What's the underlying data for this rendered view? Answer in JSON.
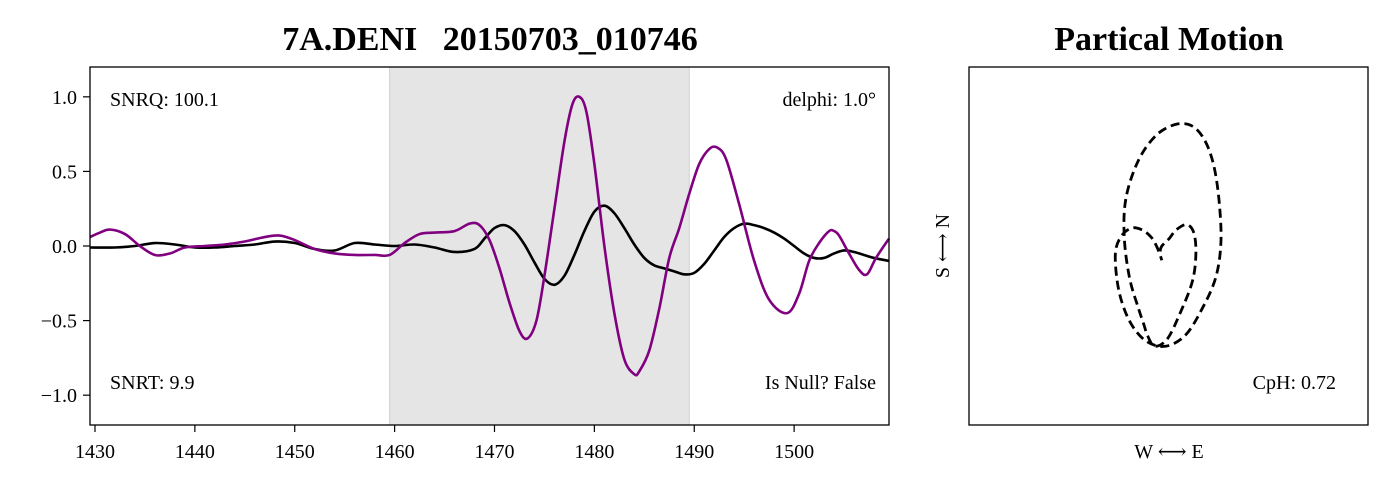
{
  "chart_data": [
    {
      "type": "line",
      "title": "7A.DENI   20150703_010746",
      "xlabel": "",
      "ylabel": "",
      "xlim": [
        1429.5,
        1509.5
      ],
      "ylim": [
        -1.2,
        1.2
      ],
      "xticks": [
        1430,
        1440,
        1450,
        1460,
        1470,
        1480,
        1490,
        1500
      ],
      "yticks": [
        1.0,
        0.5,
        0.0,
        -0.5,
        -1.0
      ],
      "ytick_labels": [
        "1.0",
        "0.5",
        "0.0",
        "−0.5",
        "−1.0"
      ],
      "grid": false,
      "window": {
        "x_start": 1459.5,
        "x_end": 1489.5,
        "color": "#e5e5e5"
      },
      "annotations": {
        "top_left": "SNRQ: 100.1",
        "top_right": "delphi: 1.0°",
        "bottom_left": "SNRT: 9.9",
        "bottom_right": "Is Null? False"
      },
      "series": [
        {
          "color": "#000000",
          "x": [
            1429.5,
            1432,
            1434,
            1436,
            1438,
            1440,
            1442,
            1444,
            1446,
            1448,
            1450,
            1452,
            1454,
            1456,
            1458,
            1460,
            1462,
            1464,
            1466,
            1468,
            1469,
            1470,
            1471,
            1472,
            1473,
            1474,
            1475,
            1476,
            1477,
            1478,
            1479,
            1480,
            1481,
            1482,
            1483,
            1484,
            1485,
            1486,
            1487,
            1488,
            1489,
            1490,
            1491,
            1492,
            1493,
            1494,
            1495,
            1496,
            1497,
            1498,
            1499,
            1500,
            1501,
            1502,
            1503,
            1504,
            1505,
            1506,
            1507,
            1508,
            1509.5
          ],
          "values": [
            -0.01,
            -0.01,
            0.0,
            0.02,
            0.01,
            -0.01,
            -0.01,
            0.0,
            0.01,
            0.03,
            0.02,
            -0.02,
            -0.03,
            0.02,
            0.01,
            0.0,
            0.01,
            -0.01,
            -0.04,
            -0.02,
            0.05,
            0.12,
            0.14,
            0.1,
            0.01,
            -0.11,
            -0.22,
            -0.26,
            -0.2,
            -0.06,
            0.1,
            0.23,
            0.27,
            0.22,
            0.12,
            0.01,
            -0.08,
            -0.13,
            -0.15,
            -0.17,
            -0.19,
            -0.18,
            -0.12,
            -0.03,
            0.06,
            0.12,
            0.15,
            0.14,
            0.12,
            0.09,
            0.05,
            0.0,
            -0.05,
            -0.08,
            -0.08,
            -0.05,
            -0.03,
            -0.04,
            -0.06,
            -0.08,
            -0.1
          ]
        },
        {
          "color": "#800080",
          "x": [
            1429.5,
            1430.5,
            1431.5,
            1433,
            1434.5,
            1436,
            1437.5,
            1439,
            1441,
            1443,
            1445,
            1447,
            1448.5,
            1450,
            1452,
            1454,
            1456,
            1458,
            1459.5,
            1461,
            1462.5,
            1464,
            1466,
            1467.5,
            1468.5,
            1469.5,
            1470.5,
            1471.5,
            1472.5,
            1473.3,
            1474.2,
            1475,
            1476,
            1477,
            1477.8,
            1478.5,
            1479.2,
            1480,
            1481,
            1482,
            1483,
            1484,
            1484.5,
            1485.5,
            1486.5,
            1487.5,
            1488.5,
            1489.5,
            1490.5,
            1491.5,
            1492.3,
            1493.2,
            1494.5,
            1496,
            1497.5,
            1499.3,
            1500.5,
            1501.5,
            1502.5,
            1503.5,
            1504,
            1504.5,
            1505.5,
            1506.5,
            1507.3,
            1508.2,
            1509.5
          ],
          "values": [
            0.06,
            0.09,
            0.11,
            0.08,
            0.0,
            -0.06,
            -0.05,
            -0.01,
            0.0,
            0.01,
            0.03,
            0.06,
            0.07,
            0.04,
            -0.02,
            -0.05,
            -0.06,
            -0.06,
            -0.06,
            0.02,
            0.08,
            0.09,
            0.1,
            0.15,
            0.14,
            0.04,
            -0.15,
            -0.38,
            -0.57,
            -0.62,
            -0.5,
            -0.2,
            0.25,
            0.7,
            0.95,
            1.0,
            0.9,
            0.55,
            0.0,
            -0.45,
            -0.76,
            -0.86,
            -0.84,
            -0.7,
            -0.42,
            -0.08,
            0.12,
            0.35,
            0.55,
            0.65,
            0.66,
            0.58,
            0.28,
            -0.1,
            -0.36,
            -0.45,
            -0.32,
            -0.1,
            0.02,
            0.1,
            0.1,
            0.07,
            -0.05,
            -0.16,
            -0.19,
            -0.08,
            0.05
          ]
        }
      ]
    },
    {
      "type": "line",
      "title": "Partical Motion",
      "xlabel": "W ⟷ E",
      "ylabel": "S ⟷ N",
      "annotations": {
        "bottom_right": "CpH: 0.72"
      },
      "grid": false,
      "xlim": [
        -1,
        1
      ],
      "ylim": [
        -1,
        1
      ],
      "series": [
        {
          "style": "dashed",
          "color": "#000000",
          "x": [
            -0.05,
            -0.04,
            0.0,
            0.04,
            0.1,
            0.14,
            0.15,
            0.13,
            0.06,
            -0.01,
            -0.08,
            -0.12,
            -0.14,
            -0.17,
            -0.22,
            -0.25,
            -0.24,
            -0.17,
            -0.07,
            0.04,
            0.13,
            0.2,
            0.25,
            0.28,
            0.29,
            0.26,
            0.18,
            0.09,
            -0.02,
            -0.13,
            -0.22,
            -0.28,
            -0.3,
            -0.27,
            -0.21,
            -0.15,
            -0.1,
            -0.07,
            -0.05,
            -0.04
          ],
          "y": [
            -0.03,
            0.0,
            0.04,
            0.09,
            0.12,
            0.07,
            -0.05,
            -0.2,
            -0.38,
            -0.52,
            -0.56,
            -0.5,
            -0.44,
            -0.35,
            -0.18,
            0.05,
            0.27,
            0.48,
            0.62,
            0.68,
            0.67,
            0.59,
            0.45,
            0.25,
            0.02,
            -0.18,
            -0.36,
            -0.5,
            -0.56,
            -0.53,
            -0.42,
            -0.25,
            -0.05,
            0.05,
            0.1,
            0.09,
            0.05,
            0.0,
            -0.05,
            -0.08
          ]
        }
      ]
    }
  ]
}
